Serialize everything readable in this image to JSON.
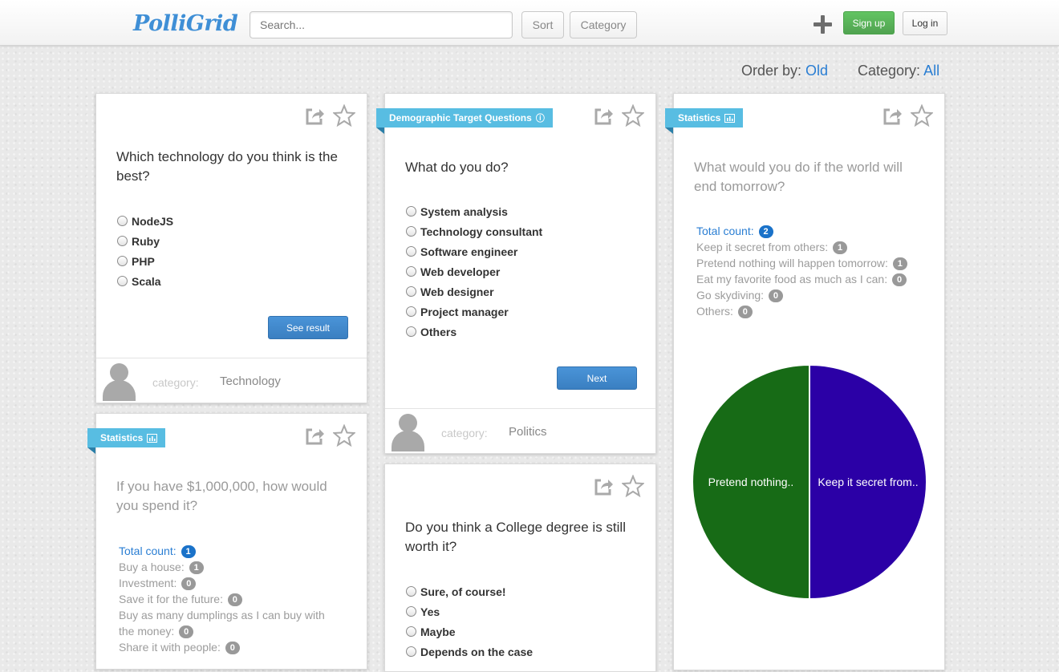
{
  "header": {
    "brand": "PolliGrid",
    "search_placeholder": "Search...",
    "sort_label": "Sort",
    "category_label": "Category",
    "add_icon": "plus-icon",
    "signup_label": "Sign up",
    "login_label": "Log in"
  },
  "filters": {
    "order_label": "Order by:",
    "order_value": "Old",
    "category_label": "Category:",
    "category_value": "All"
  },
  "colors": {
    "accent": "#2a7ed3",
    "ribbon": "#58bde2",
    "signup_green": "#5bb75b",
    "primary_blue": "#3f89cf",
    "pie_purple": "#2b00a6",
    "pie_green": "#176b16"
  },
  "cards": {
    "tech": {
      "question": "Which technology do you think is the best?",
      "options": [
        "NodeJS",
        "Ruby",
        "PHP",
        "Scala"
      ],
      "button": "See result",
      "category_label": "category:",
      "category": "Technology"
    },
    "occupation": {
      "ribbon": "Demographic Target Questions",
      "ribbon_icon": "info-icon",
      "question": "What do you do?",
      "options": [
        "System analysis",
        "Technology consultant",
        "Software engineer",
        "Web developer",
        "Web designer",
        "Project manager",
        "Others"
      ],
      "button": "Next",
      "category_label": "category:",
      "category": "Politics"
    },
    "million": {
      "ribbon": "Statistics",
      "ribbon_icon": "bar-chart-icon",
      "question": "If you have $1,000,000, how would you spend it?",
      "total_label": "Total count:",
      "total": "1",
      "results": [
        {
          "label": "Buy a house:",
          "count": "1"
        },
        {
          "label": "Investment:",
          "count": "0"
        },
        {
          "label": "Save it for the future:",
          "count": "0"
        },
        {
          "label": "Buy as many dumplings as I can buy with the money:",
          "count": "0"
        },
        {
          "label": "Share it with people:",
          "count": "0"
        }
      ]
    },
    "college": {
      "question": "Do you think a College degree is still worth it?",
      "options": [
        "Sure, of course!",
        "Yes",
        "Maybe",
        "Depends on the case"
      ]
    },
    "world": {
      "ribbon": "Statistics",
      "ribbon_icon": "bar-chart-icon",
      "question": "What would you do if the world will end tomorrow?",
      "total_label": "Total count:",
      "total": "2",
      "results": [
        {
          "label": "Keep it secret from others:",
          "count": "1"
        },
        {
          "label": "Pretend nothing will happen tomorrow:",
          "count": "1"
        },
        {
          "label": "Eat my favorite food as much as I can:",
          "count": "0"
        },
        {
          "label": "Go skydiving:",
          "count": "0"
        },
        {
          "label": "Others:",
          "count": "0"
        }
      ]
    }
  },
  "chart_data": {
    "type": "pie",
    "slices": [
      {
        "label": "Keep it secret from..",
        "value": 1,
        "color": "#2b00a6"
      },
      {
        "label": "Pretend nothing..",
        "value": 1,
        "color": "#176b16"
      }
    ]
  }
}
